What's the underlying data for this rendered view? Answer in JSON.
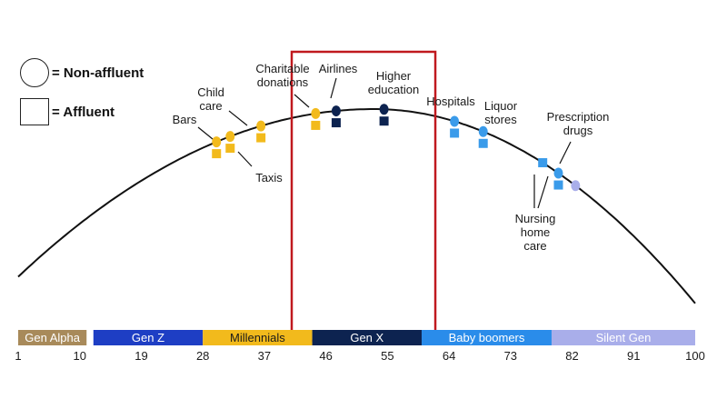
{
  "legend": {
    "non_affluent": "= Non-affluent",
    "affluent": "= Affluent"
  },
  "colors": {
    "millennials_marker": "#F2BA1C",
    "genx_marker": "#0D2350",
    "boomer_marker": "#3A9BEA",
    "silent_marker": "#A9AEEA",
    "highlight_box": "#C0191E",
    "curve": "#111111"
  },
  "generations": [
    {
      "label": "Gen Alpha",
      "start": 1,
      "end": 11,
      "fill": "#A88A5A",
      "text": "#ffffff"
    },
    {
      "label": "Gen Z",
      "start": 12,
      "end": 28,
      "fill": "#1E3EC4",
      "text": "#ffffff"
    },
    {
      "label": "Millennials",
      "start": 28,
      "end": 44,
      "fill": "#F2BA1C",
      "text": "#1a1a1a"
    },
    {
      "label": "Gen X",
      "start": 44,
      "end": 60,
      "fill": "#0D2350",
      "text": "#ffffff"
    },
    {
      "label": "Baby boomers",
      "start": 60,
      "end": 79,
      "fill": "#2A8CEA",
      "text": "#ffffff"
    },
    {
      "label": "Silent Gen",
      "start": 79,
      "end": 100,
      "fill": "#A9AEEA",
      "text": "#ffffff"
    }
  ],
  "axis_ticks": [
    "1",
    "10",
    "19",
    "28",
    "37",
    "46",
    "55",
    "64",
    "73",
    "82",
    "91",
    "100"
  ],
  "tick_values": [
    1,
    10,
    19,
    28,
    37,
    46,
    55,
    64,
    73,
    82,
    91,
    100
  ],
  "highlight_range": [
    41,
    62
  ],
  "curve": {
    "peak_age": 53,
    "peak_level": 100,
    "left_level": 18,
    "right_level": 5
  },
  "labels": {
    "bars": "Bars",
    "child_care": [
      "Child",
      "care"
    ],
    "taxis": "Taxis",
    "charitable": [
      "Charitable",
      "donations"
    ],
    "airlines": "Airlines",
    "higher_education": [
      "Higher",
      "education"
    ],
    "hospitals": "Hospitals",
    "liquor": [
      "Liquor",
      "stores"
    ],
    "prescription": [
      "Prescription",
      "drugs"
    ],
    "nursing": [
      "Nursing",
      "home",
      "care"
    ]
  },
  "markers": [
    {
      "id": "bars",
      "age": 30,
      "group": "millennials",
      "shapes": "both"
    },
    {
      "id": "taxis",
      "age": 32,
      "group": "millennials",
      "shapes": "both"
    },
    {
      "id": "child-care",
      "age": 36.5,
      "group": "millennials",
      "shapes": "both"
    },
    {
      "id": "charitable-donations",
      "age": 44.5,
      "group": "millennials",
      "shapes": "both"
    },
    {
      "id": "airlines",
      "age": 47.5,
      "group": "genx",
      "shapes": "both"
    },
    {
      "id": "higher-education",
      "age": 54.5,
      "group": "genx",
      "shapes": "both"
    },
    {
      "id": "hospitals",
      "age": 64.8,
      "group": "boomer",
      "shapes": "both"
    },
    {
      "id": "liquor-stores",
      "age": 69,
      "group": "boomer",
      "shapes": "both"
    },
    {
      "id": "nursing-home-square",
      "age": 77.7,
      "group": "boomer",
      "shapes": "square"
    },
    {
      "id": "nursing-home-circle",
      "age": 80,
      "group": "boomer",
      "shapes": "both"
    },
    {
      "id": "prescription-drugs",
      "age": 82.5,
      "group": "silent",
      "shapes": "circle"
    }
  ]
}
